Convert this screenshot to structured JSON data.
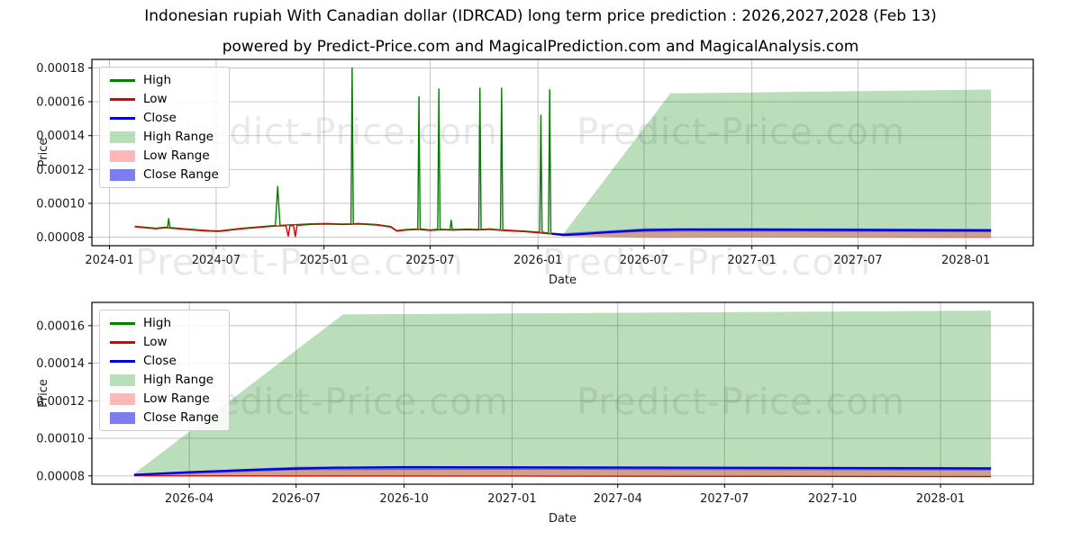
{
  "title": "Indonesian rupiah With Canadian dollar (IDRCAD) long term price prediction : 2026,2027,2028 (Feb 13)",
  "subtitle": "powered by Predict-Price.com and MagicalPrediction.com and MagicalAnalysis.com",
  "watermark": {
    "text": "Predict-Price.com"
  },
  "colors": {
    "high": "#007f00",
    "low": "#dd0000",
    "close": "#0000dd",
    "high_range": "rgba(0,128,0,0.27)",
    "low_range": "rgba(255,40,40,0.33)",
    "close_range": "rgba(45,45,230,0.62)",
    "grid": "#bdbdbd",
    "frame": "#000000"
  },
  "legend": {
    "items": [
      {
        "label": "High",
        "swatch": "line",
        "color": "#007f00"
      },
      {
        "label": "Low",
        "swatch": "line",
        "color": "#dd0000"
      },
      {
        "label": "Close",
        "swatch": "line",
        "color": "#0000dd"
      },
      {
        "label": "High Range",
        "swatch": "patch",
        "color": "rgba(0,128,0,0.27)"
      },
      {
        "label": "Low Range",
        "swatch": "patch",
        "color": "rgba(255,40,40,0.33)"
      },
      {
        "label": "Close Range",
        "swatch": "patch",
        "color": "rgba(45,45,230,0.62)"
      }
    ]
  },
  "chart_data": [
    {
      "type": "line",
      "name": "history-and-forecast",
      "xlabel": "Date",
      "ylabel": "Price",
      "grid": true,
      "legend_position": "upper left",
      "xlim": [
        "2023-12-02",
        "2028-04-25"
      ],
      "ylim": [
        7.5e-05,
        0.000185
      ],
      "y_ticks": [
        8e-05,
        0.0001,
        0.00012,
        0.00014,
        0.00016,
        0.00018
      ],
      "x_ticks": [
        {
          "date": "2024-01-01",
          "label": "2024-01"
        },
        {
          "date": "2024-07-01",
          "label": "2024-07"
        },
        {
          "date": "2025-01-01",
          "label": "2025-01"
        },
        {
          "date": "2025-07-01",
          "label": "2025-07"
        },
        {
          "date": "2026-01-01",
          "label": "2026-01"
        },
        {
          "date": "2026-07-01",
          "label": "2026-07"
        },
        {
          "date": "2027-01-01",
          "label": "2027-01"
        },
        {
          "date": "2027-07-01",
          "label": "2027-07"
        },
        {
          "date": "2028-01-01",
          "label": "2028-01"
        }
      ],
      "areas": [
        {
          "name": "High Range",
          "color": "rgba(0,128,0,0.27)",
          "x": [
            "2026-02-13",
            "2026-08-15",
            "2027-01-01",
            "2028-02-13"
          ],
          "top": [
            8.18e-05,
            0.000165,
            0.0001655,
            0.0001672
          ],
          "bottom": [
            8.06e-05,
            8e-05,
            8e-05,
            7.97e-05
          ]
        },
        {
          "name": "Low Range",
          "color": "rgba(255,40,40,0.33)",
          "x": [
            "2026-02-13",
            "2026-07-01",
            "2027-01-01",
            "2028-02-13"
          ],
          "top": [
            8.18e-05,
            8.37e-05,
            8.39e-05,
            8.35e-05
          ],
          "bottom": [
            8.06e-05,
            7.96e-05,
            7.98e-05,
            7.94e-05
          ]
        },
        {
          "name": "Close Range",
          "color": "rgba(45,45,230,0.62)",
          "x": [
            "2026-02-13",
            "2026-07-01",
            "2027-01-01",
            "2028-02-13"
          ],
          "top": [
            8.24e-05,
            8.52e-05,
            8.54e-05,
            8.5e-05
          ],
          "bottom": [
            8.1e-05,
            8.32e-05,
            8.34e-05,
            8.3e-05
          ]
        }
      ],
      "series": [
        {
          "name": "High",
          "color": "#007f00",
          "width": 1.4,
          "points": [
            [
              "2024-02-13",
              8.65e-05
            ],
            [
              "2024-03-01",
              8.59e-05
            ],
            [
              "2024-03-20",
              8.53e-05
            ],
            [
              "2024-04-05",
              8.59e-05
            ],
            [
              "2024-04-09",
              8.58e-05
            ],
            [
              "2024-04-11",
              9.1e-05
            ],
            [
              "2024-04-13",
              8.57e-05
            ],
            [
              "2024-04-20",
              8.55e-05
            ],
            [
              "2024-05-10",
              8.49e-05
            ],
            [
              "2024-06-01",
              8.43e-05
            ],
            [
              "2024-06-20",
              8.39e-05
            ],
            [
              "2024-07-05",
              8.37e-05
            ],
            [
              "2024-07-25",
              8.45e-05
            ],
            [
              "2024-08-15",
              8.53e-05
            ],
            [
              "2024-09-05",
              8.59e-05
            ],
            [
              "2024-09-25",
              8.65e-05
            ],
            [
              "2024-10-10",
              8.69e-05
            ],
            [
              "2024-10-14",
              0.00011
            ],
            [
              "2024-10-18",
              8.7e-05
            ],
            [
              "2024-11-05",
              8.73e-05
            ],
            [
              "2024-11-18",
              8.75e-05
            ],
            [
              "2024-12-10",
              8.79e-05
            ],
            [
              "2025-01-05",
              8.81e-05
            ],
            [
              "2025-02-01",
              8.78e-05
            ],
            [
              "2025-02-16",
              8.79e-05
            ],
            [
              "2025-02-18",
              0.00018
            ],
            [
              "2025-02-20",
              8.79e-05
            ],
            [
              "2025-03-01",
              8.81e-05
            ],
            [
              "2025-04-01",
              8.75e-05
            ],
            [
              "2025-04-25",
              8.63e-05
            ],
            [
              "2025-05-05",
              8.39e-05
            ],
            [
              "2025-05-20",
              8.45e-05
            ],
            [
              "2025-06-10",
              8.49e-05
            ],
            [
              "2025-06-12",
              0.000163
            ],
            [
              "2025-06-14",
              8.49e-05
            ],
            [
              "2025-07-01",
              8.43e-05
            ],
            [
              "2025-07-14",
              8.47e-05
            ],
            [
              "2025-07-16",
              0.0001675
            ],
            [
              "2025-07-18",
              8.47e-05
            ],
            [
              "2025-08-04",
              8.45e-05
            ],
            [
              "2025-08-06",
              9e-05
            ],
            [
              "2025-08-08",
              8.45e-05
            ],
            [
              "2025-09-01",
              8.48e-05
            ],
            [
              "2025-09-22",
              8.46e-05
            ],
            [
              "2025-09-24",
              0.000168
            ],
            [
              "2025-09-26",
              8.46e-05
            ],
            [
              "2025-10-10",
              8.49e-05
            ],
            [
              "2025-10-29",
              8.43e-05
            ],
            [
              "2025-10-31",
              0.000168
            ],
            [
              "2025-11-02",
              8.43e-05
            ],
            [
              "2025-11-20",
              8.4e-05
            ],
            [
              "2025-12-10",
              8.36e-05
            ],
            [
              "2026-01-04",
              8.3e-05
            ],
            [
              "2026-01-06",
              0.000152
            ],
            [
              "2026-01-08",
              8.3e-05
            ],
            [
              "2026-01-19",
              8.24e-05
            ],
            [
              "2026-01-21",
              0.000167
            ],
            [
              "2026-01-23",
              8.24e-05
            ],
            [
              "2026-02-13",
              8.19e-05
            ]
          ]
        },
        {
          "name": "Low",
          "color": "#dd0000",
          "width": 1.4,
          "points": [
            [
              "2024-02-13",
              8.62e-05
            ],
            [
              "2024-03-01",
              8.56e-05
            ],
            [
              "2024-03-20",
              8.5e-05
            ],
            [
              "2024-04-05",
              8.56e-05
            ],
            [
              "2024-04-20",
              8.52e-05
            ],
            [
              "2024-05-10",
              8.46e-05
            ],
            [
              "2024-06-01",
              8.4e-05
            ],
            [
              "2024-06-20",
              8.36e-05
            ],
            [
              "2024-07-05",
              8.34e-05
            ],
            [
              "2024-07-25",
              8.42e-05
            ],
            [
              "2024-08-15",
              8.5e-05
            ],
            [
              "2024-09-05",
              8.56e-05
            ],
            [
              "2024-09-25",
              8.62e-05
            ],
            [
              "2024-10-10",
              8.66e-05
            ],
            [
              "2024-10-28",
              8.68e-05
            ],
            [
              "2024-11-01",
              8.06e-05
            ],
            [
              "2024-11-04",
              8.69e-05
            ],
            [
              "2024-11-10",
              8.68e-05
            ],
            [
              "2024-11-13",
              8.04e-05
            ],
            [
              "2024-11-16",
              8.7e-05
            ],
            [
              "2024-12-10",
              8.76e-05
            ],
            [
              "2025-01-05",
              8.78e-05
            ],
            [
              "2025-02-01",
              8.75e-05
            ],
            [
              "2025-03-01",
              8.78e-05
            ],
            [
              "2025-04-01",
              8.72e-05
            ],
            [
              "2025-04-25",
              8.6e-05
            ],
            [
              "2025-05-05",
              8.36e-05
            ],
            [
              "2025-05-20",
              8.42e-05
            ],
            [
              "2025-06-10",
              8.46e-05
            ],
            [
              "2025-07-01",
              8.4e-05
            ],
            [
              "2025-07-20",
              8.44e-05
            ],
            [
              "2025-08-10",
              8.42e-05
            ],
            [
              "2025-09-01",
              8.45e-05
            ],
            [
              "2025-09-20",
              8.43e-05
            ],
            [
              "2025-10-10",
              8.46e-05
            ],
            [
              "2025-11-01",
              8.4e-05
            ],
            [
              "2025-11-20",
              8.37e-05
            ],
            [
              "2025-12-10",
              8.33e-05
            ],
            [
              "2026-01-01",
              8.27e-05
            ],
            [
              "2026-01-20",
              8.2e-05
            ],
            [
              "2026-02-13",
              8.16e-05
            ]
          ]
        },
        {
          "name": "Close",
          "color": "#0000dd",
          "width": 2.2,
          "points": [
            [
              "2026-01-25",
              8.2e-05
            ],
            [
              "2026-02-13",
              8.13e-05
            ],
            [
              "2026-03-15",
              8.18e-05
            ],
            [
              "2026-05-01",
              8.3e-05
            ],
            [
              "2026-07-01",
              8.42e-05
            ],
            [
              "2026-09-01",
              8.46e-05
            ],
            [
              "2027-01-01",
              8.45e-05
            ],
            [
              "2027-07-01",
              8.43e-05
            ],
            [
              "2028-02-13",
              8.4e-05
            ]
          ]
        }
      ]
    },
    {
      "type": "line",
      "name": "forecast-detail",
      "xlabel": "Date",
      "ylabel": "Price",
      "grid": true,
      "legend_position": "upper left",
      "xlim": [
        "2026-01-08",
        "2028-03-20"
      ],
      "ylim": [
        7.56e-05,
        0.0001724
      ],
      "y_ticks": [
        8e-05,
        0.0001,
        0.00012,
        0.00014,
        0.00016
      ],
      "x_ticks": [
        {
          "date": "2026-04-01",
          "label": "2026-04"
        },
        {
          "date": "2026-07-01",
          "label": "2026-07"
        },
        {
          "date": "2026-10-01",
          "label": "2026-10"
        },
        {
          "date": "2027-01-01",
          "label": "2027-01"
        },
        {
          "date": "2027-04-01",
          "label": "2027-04"
        },
        {
          "date": "2027-07-01",
          "label": "2027-07"
        },
        {
          "date": "2027-10-01",
          "label": "2027-10"
        },
        {
          "date": "2028-01-01",
          "label": "2028-01"
        }
      ],
      "areas": [
        {
          "name": "High Range",
          "color": "rgba(0,128,0,0.27)",
          "x": [
            "2026-02-13",
            "2026-08-10",
            "2027-01-01",
            "2028-02-13"
          ],
          "top": [
            8.12e-05,
            0.000166,
            0.0001665,
            0.000168
          ],
          "bottom": [
            8.02e-05,
            8e-05,
            8e-05,
            7.97e-05
          ]
        },
        {
          "name": "Low Range",
          "color": "rgba(255,40,40,0.33)",
          "x": [
            "2026-02-13",
            "2026-07-01",
            "2027-01-01",
            "2028-02-13"
          ],
          "top": [
            8.08e-05,
            8.34e-05,
            8.36e-05,
            8.32e-05
          ],
          "bottom": [
            8e-05,
            7.95e-05,
            7.97e-05,
            7.93e-05
          ]
        },
        {
          "name": "Close Range",
          "color": "rgba(45,45,230,0.62)",
          "x": [
            "2026-02-13",
            "2026-07-01",
            "2027-01-01",
            "2028-02-13"
          ],
          "top": [
            8.12e-05,
            8.49e-05,
            8.51e-05,
            8.47e-05
          ],
          "bottom": [
            8e-05,
            8.31e-05,
            8.33e-05,
            8.29e-05
          ]
        }
      ],
      "series": [
        {
          "name": "Low",
          "color": "#dd0000",
          "width": 1.2,
          "points": [
            [
              "2026-02-13",
              8.01e-05
            ],
            [
              "2027-01-01",
              7.99e-05
            ],
            [
              "2028-02-13",
              7.96e-05
            ]
          ]
        },
        {
          "name": "Close",
          "color": "#0000dd",
          "width": 2.2,
          "points": [
            [
              "2026-02-13",
              8.06e-05
            ],
            [
              "2026-04-01",
              8.2e-05
            ],
            [
              "2026-06-01",
              8.34e-05
            ],
            [
              "2026-08-01",
              8.44e-05
            ],
            [
              "2026-10-01",
              8.47e-05
            ],
            [
              "2027-01-01",
              8.46e-05
            ],
            [
              "2027-06-01",
              8.44e-05
            ],
            [
              "2028-02-13",
              8.4e-05
            ]
          ]
        }
      ]
    }
  ]
}
